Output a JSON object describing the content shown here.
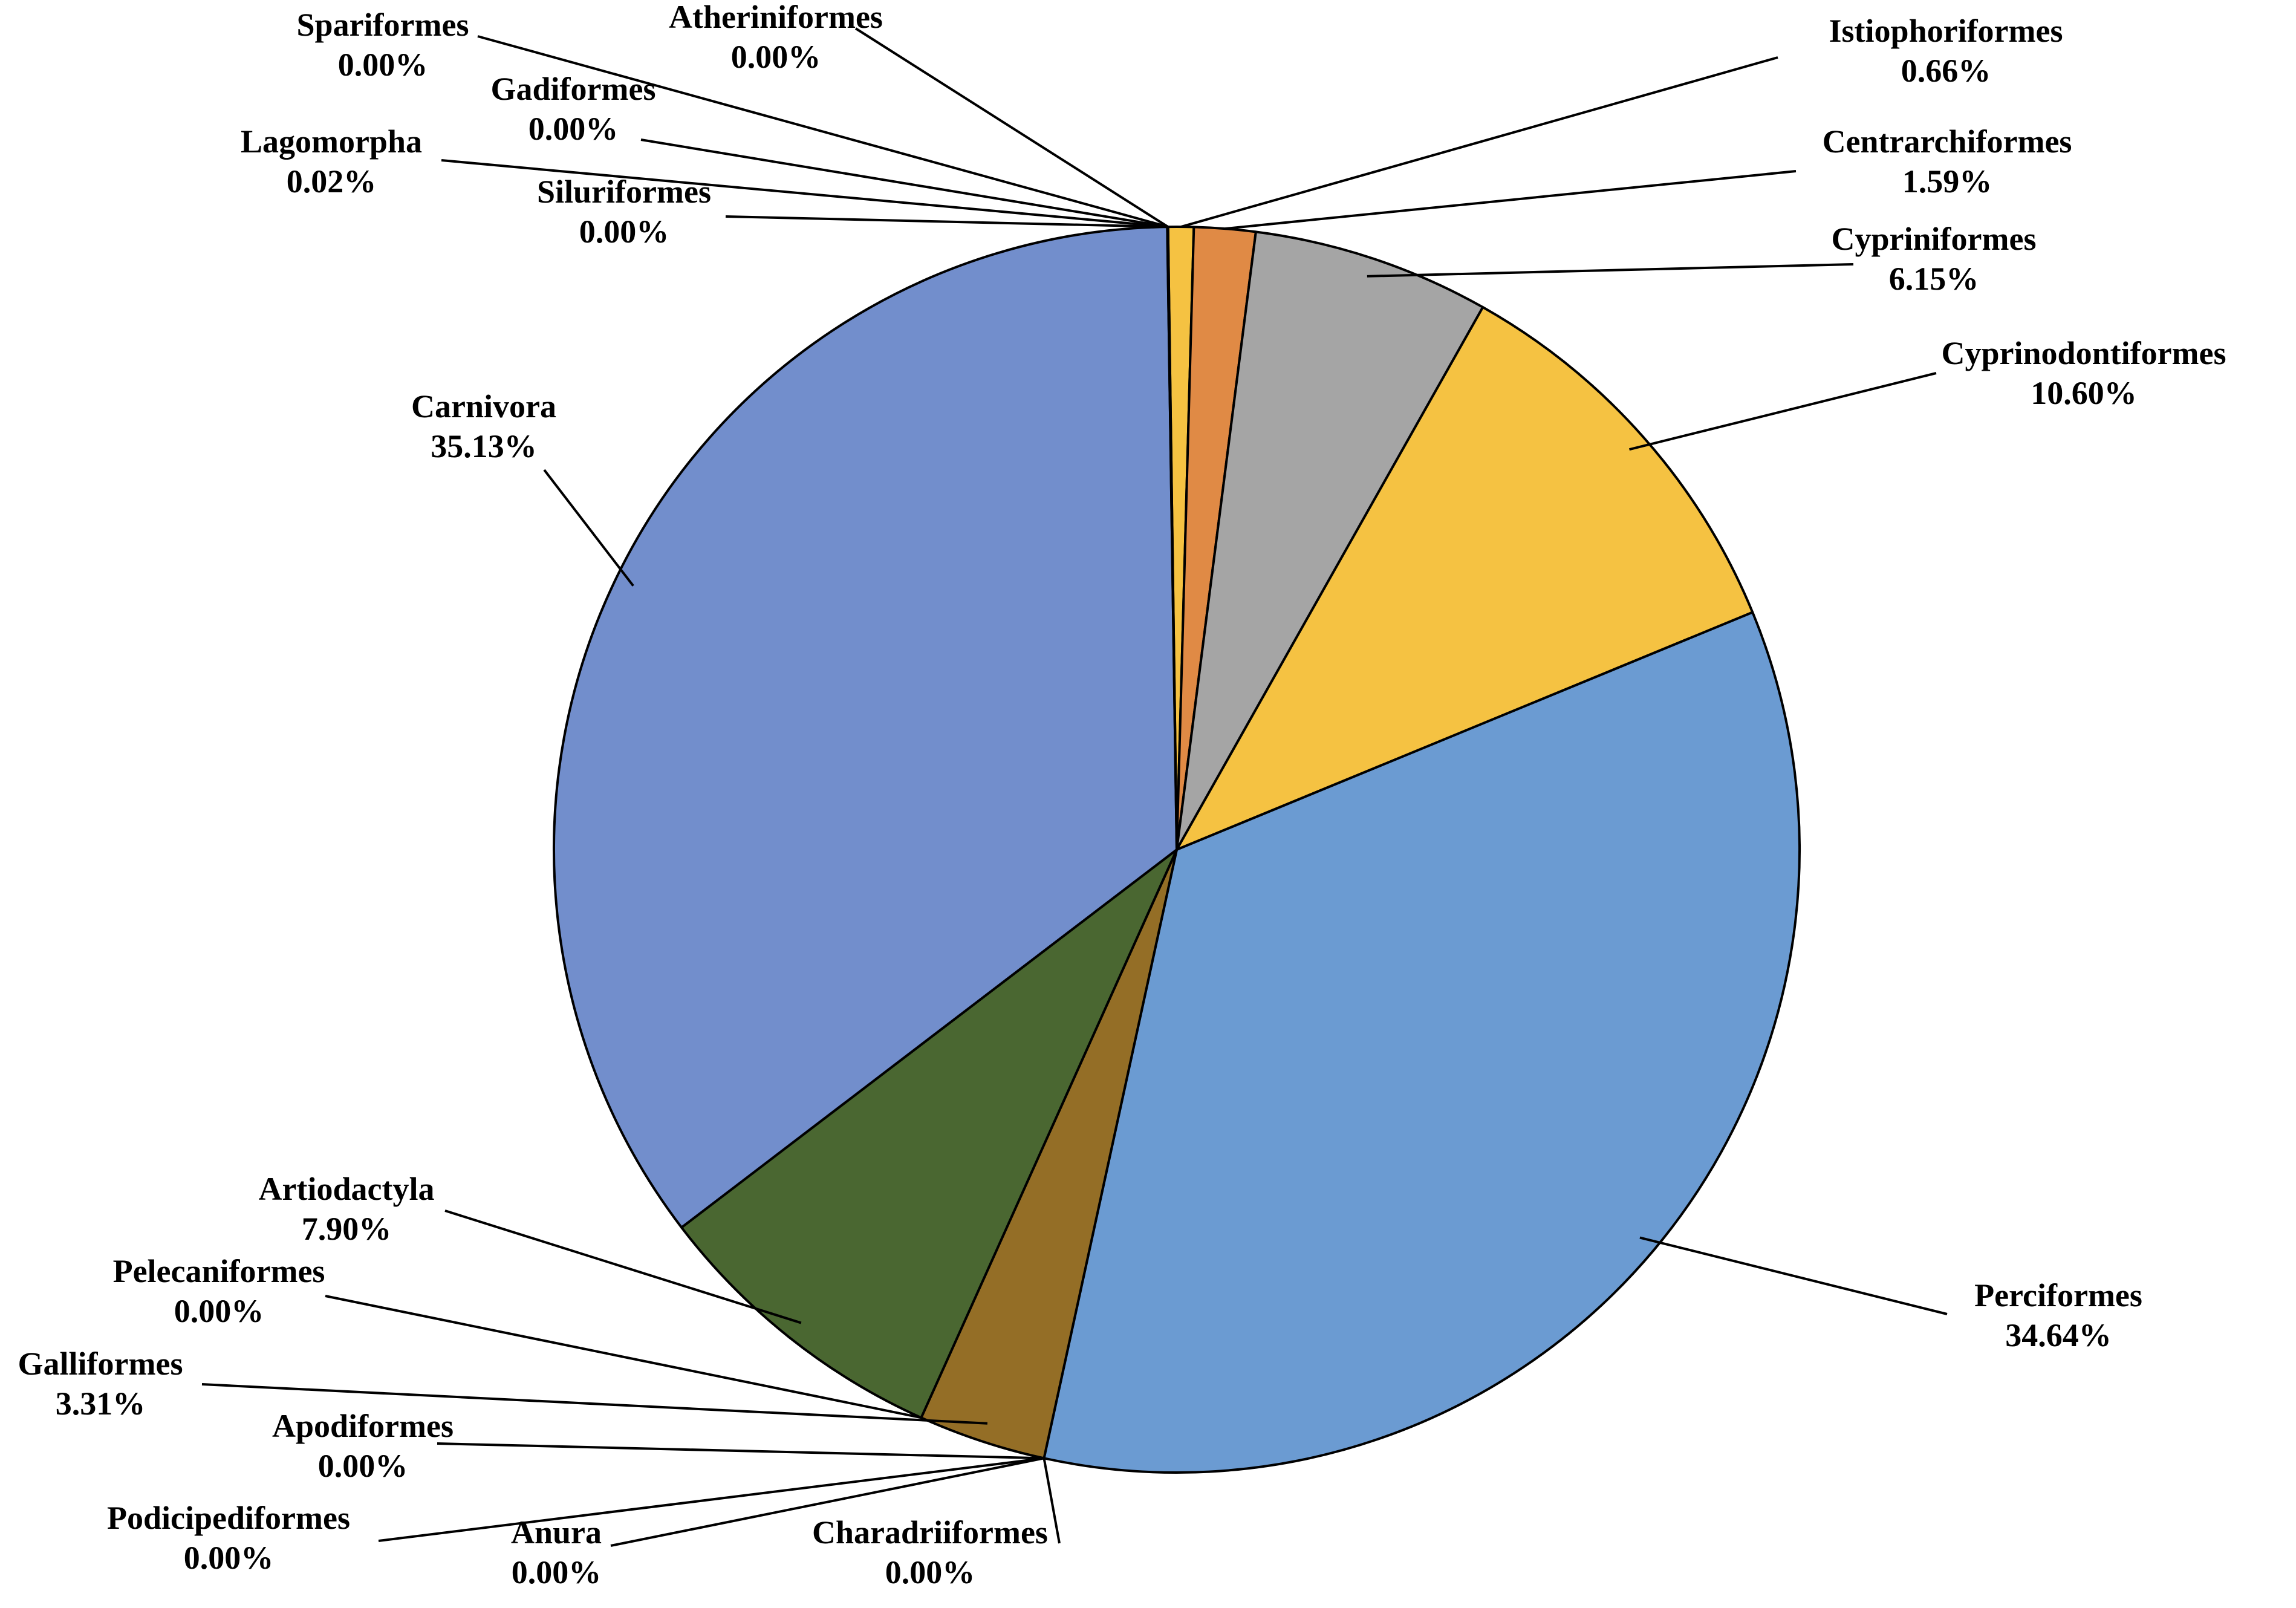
{
  "chart_data": {
    "type": "pie",
    "title": "",
    "start_angle_deg": 90.8,
    "direction": "clockwise",
    "slices": [
      {
        "name": "Atheriniformes",
        "value": 0.0,
        "label": "0.00%",
        "color": "#FFFFFF"
      },
      {
        "name": "Istiophoriformes",
        "value": 0.66,
        "label": "0.66%",
        "color": "#F5C242"
      },
      {
        "name": "Centrarchiformes",
        "value": 1.59,
        "label": "1.59%",
        "color": "#E08A45"
      },
      {
        "name": "Cypriniformes",
        "value": 6.15,
        "label": "6.15%",
        "color": "#A5A5A5"
      },
      {
        "name": "Cyprinodontiformes",
        "value": 10.6,
        "label": "10.60%",
        "color": "#F5C242"
      },
      {
        "name": "Perciformes",
        "value": 34.64,
        "label": "34.64%",
        "color": "#6B9BD2"
      },
      {
        "name": "Charadriiformes",
        "value": 0.0,
        "label": "0.00%",
        "color": "#FFFFFF"
      },
      {
        "name": "Anura",
        "value": 0.0,
        "label": "0.00%",
        "color": "#FFFFFF"
      },
      {
        "name": "Podicipediformes",
        "value": 0.0,
        "label": "0.00%",
        "color": "#FFFFFF"
      },
      {
        "name": "Apodiformes",
        "value": 0.0,
        "label": "0.00%",
        "color": "#FFFFFF"
      },
      {
        "name": "Galliformes",
        "value": 3.31,
        "label": "3.31%",
        "color": "#946E26"
      },
      {
        "name": "Pelecaniformes",
        "value": 0.0,
        "label": "0.00%",
        "color": "#FFFFFF"
      },
      {
        "name": "Artiodactyla",
        "value": 7.9,
        "label": "7.90%",
        "color": "#4A6731"
      },
      {
        "name": "Carnivora",
        "value": 35.13,
        "label": "35.13%",
        "color": "#728ECC"
      },
      {
        "name": "Siluriformes",
        "value": 0.0,
        "label": "0.00%",
        "color": "#FFFFFF"
      },
      {
        "name": "Lagomorpha",
        "value": 0.02,
        "label": "0.02%",
        "color": "#FFFFFF"
      },
      {
        "name": "Gadiformes",
        "value": 0.0,
        "label": "0.00%",
        "color": "#FFFFFF"
      },
      {
        "name": "Spariformes",
        "value": 0.0,
        "label": "0.00%",
        "color": "#FFFFFF"
      }
    ]
  }
}
